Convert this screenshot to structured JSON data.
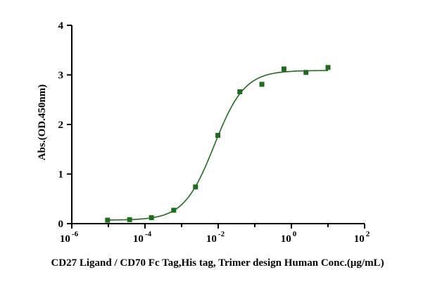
{
  "chart_data": {
    "type": "scatter",
    "title": "",
    "xlabel": "CD27 Ligand / CD70 Fc Tag,His tag, Trimer design Human Conc.(μg/mL)",
    "ylabel": "Abs.(OD.450nm)",
    "x_scale": "log10",
    "xlim": [
      1e-06,
      100
    ],
    "ylim": [
      0,
      4
    ],
    "x_ticks": [
      {
        "value": 1e-06,
        "base": "10",
        "exp": "-6"
      },
      {
        "value": 0.0001,
        "base": "10",
        "exp": "-4"
      },
      {
        "value": 0.01,
        "base": "10",
        "exp": "-2"
      },
      {
        "value": 1,
        "base": "10",
        "exp": "0"
      },
      {
        "value": 100,
        "base": "10",
        "exp": "2"
      }
    ],
    "y_ticks": [
      {
        "value": 0,
        "label": "0"
      },
      {
        "value": 1,
        "label": "1"
      },
      {
        "value": 2,
        "label": "2"
      },
      {
        "value": 3,
        "label": "3"
      },
      {
        "value": 4,
        "label": "4"
      }
    ],
    "grid": false,
    "legend": "none",
    "color": "#1f6b1f",
    "series": [
      {
        "marker": "square",
        "points": [
          {
            "x": 9.5e-06,
            "y": 0.07
          },
          {
            "x": 3.8e-05,
            "y": 0.08
          },
          {
            "x": 0.00015,
            "y": 0.12
          },
          {
            "x": 0.00061,
            "y": 0.27
          },
          {
            "x": 0.0024,
            "y": 0.74
          },
          {
            "x": 0.0098,
            "y": 1.78
          },
          {
            "x": 0.039,
            "y": 2.66
          },
          {
            "x": 0.156,
            "y": 2.81
          },
          {
            "x": 0.625,
            "y": 3.12
          },
          {
            "x": 2.5,
            "y": 3.05
          },
          {
            "x": 10,
            "y": 3.15
          }
        ],
        "fit": {
          "bottom": 0.07,
          "top": 3.09,
          "ec50": 0.0078,
          "hill": 1.05
        }
      }
    ]
  }
}
